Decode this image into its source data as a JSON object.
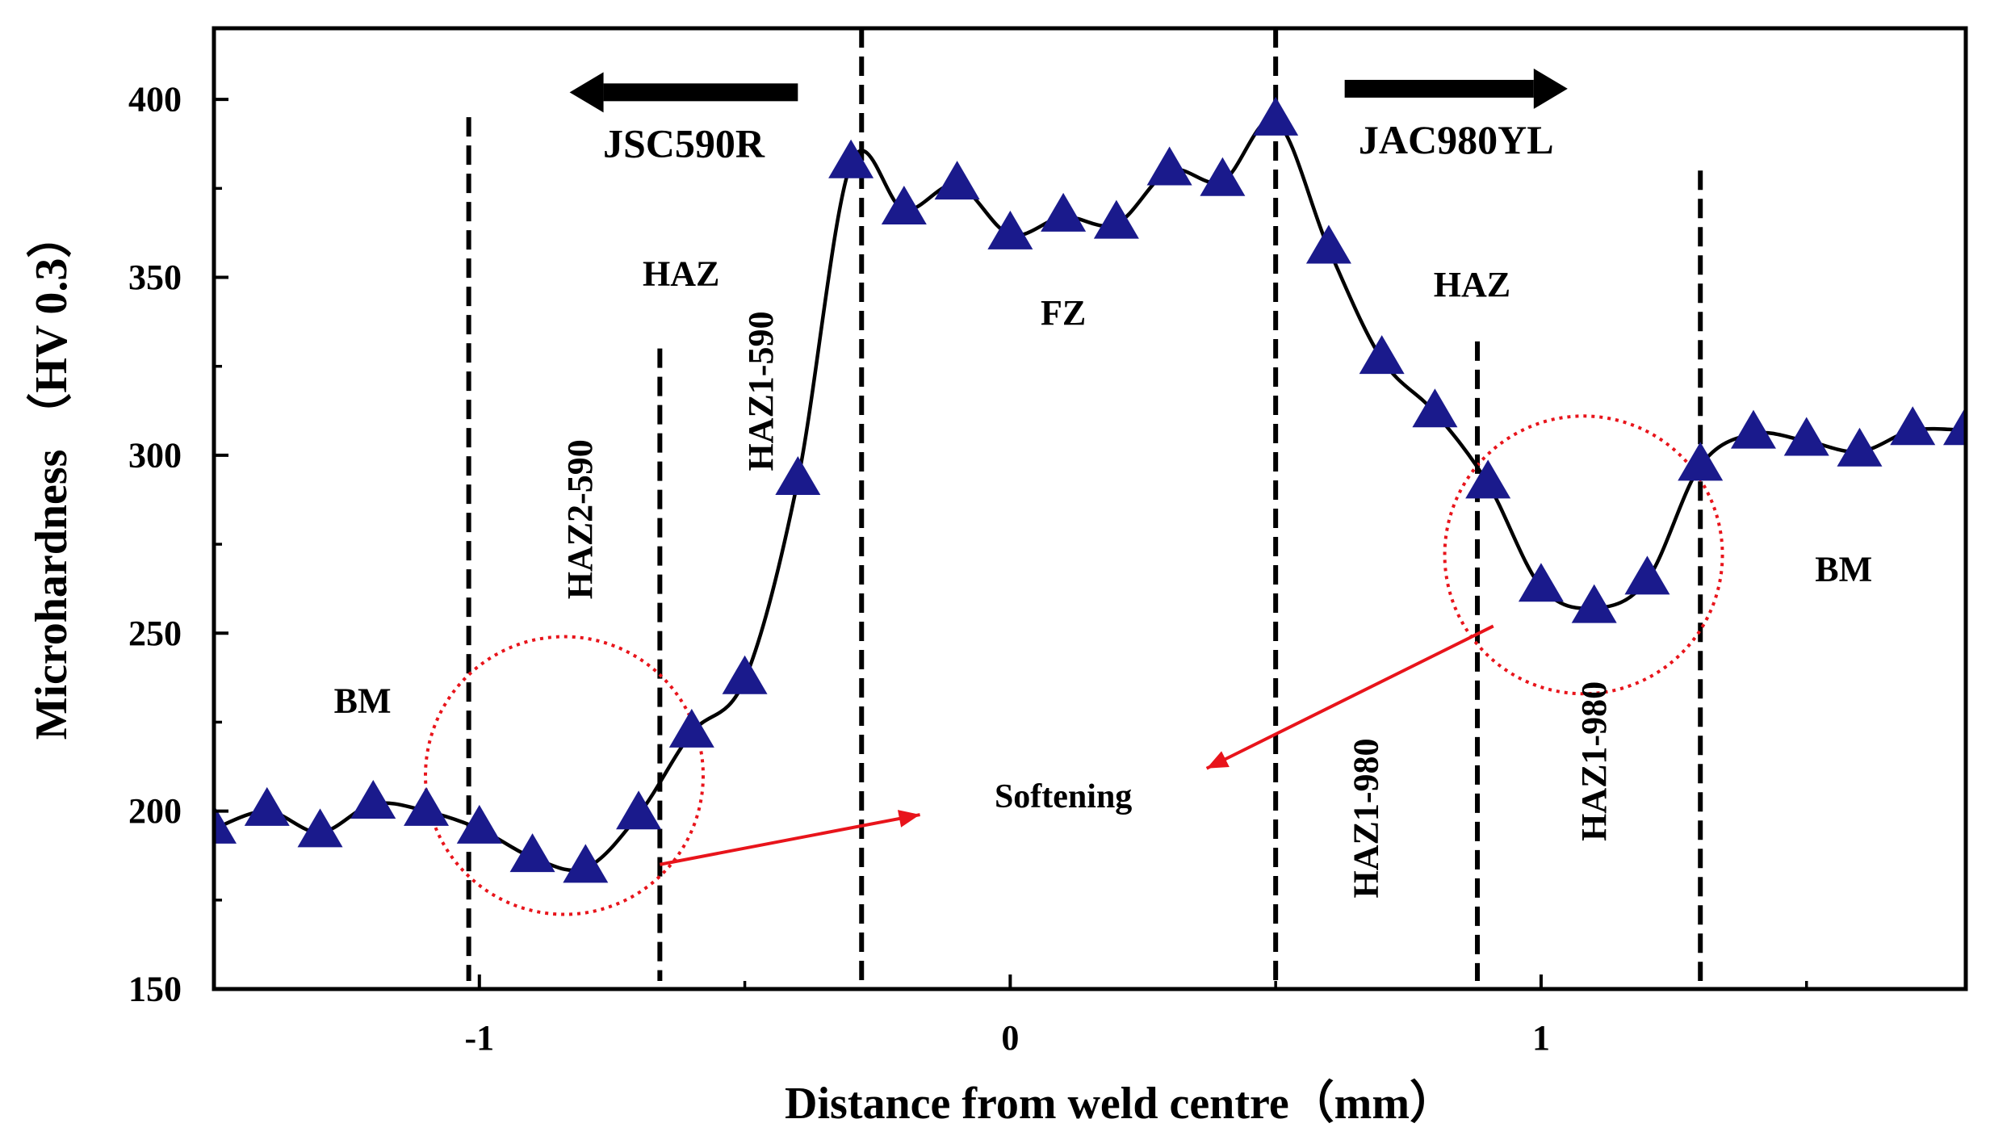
{
  "chart_data": {
    "type": "line",
    "title": "",
    "xlabel": "Distance from weld centre（mm）",
    "ylabel": "Microhardness （HV 0.3）",
    "xlim": [
      -1.5,
      1.8
    ],
    "ylim": [
      150,
      420
    ],
    "xticks": [
      -1,
      0,
      1
    ],
    "xtick_labels": [
      "-1",
      "0",
      "1"
    ],
    "yticks": [
      150,
      200,
      250,
      300,
      350,
      400
    ],
    "ytick_labels": [
      "150",
      "200",
      "250",
      "300",
      "350",
      "400"
    ],
    "marker": "triangle",
    "marker_color": "#1a1a8c",
    "line_color": "#000000",
    "series": [
      {
        "name": "Microhardness",
        "x": [
          -1.5,
          -1.4,
          -1.3,
          -1.2,
          -1.1,
          -1.0,
          -0.9,
          -0.8,
          -0.7,
          -0.6,
          -0.5,
          -0.4,
          -0.3,
          -0.2,
          -0.1,
          0.0,
          0.1,
          0.2,
          0.3,
          0.4,
          0.5,
          0.6,
          0.7,
          0.8,
          0.9,
          1.0,
          1.1,
          1.2,
          1.3,
          1.4,
          1.5,
          1.6,
          1.7,
          1.8
        ],
        "y": [
          195,
          200,
          194,
          202,
          200,
          195,
          187,
          184,
          199,
          222,
          237,
          293,
          382,
          369,
          376,
          362,
          367,
          365,
          380,
          377,
          394,
          358,
          327,
          312,
          292,
          263,
          257,
          265,
          297,
          306,
          304,
          301,
          307,
          307
        ]
      }
    ],
    "boundaries": [
      -1.02,
      -0.66,
      -0.28,
      0.5,
      0.88,
      1.3
    ],
    "softening_circles": [
      {
        "cx": -0.84,
        "cy": 210
      },
      {
        "cx": 1.08,
        "cy": 272
      }
    ],
    "arrows": [
      {
        "label": "JSC590R",
        "direction": "left",
        "from_x": -0.4,
        "to_x": -0.83,
        "y": 402
      },
      {
        "label": "JAC980YL",
        "direction": "right",
        "from_x": 0.63,
        "to_x": 1.05,
        "y": 403
      }
    ],
    "region_labels": [
      {
        "text": "HAZ",
        "x": -0.62,
        "y": 351,
        "rotated": false,
        "size": 44
      },
      {
        "text": "FZ",
        "x": 0.1,
        "y": 340,
        "rotated": false,
        "size": 44
      },
      {
        "text": "HAZ",
        "x": 0.87,
        "y": 348,
        "rotated": false,
        "size": 44
      },
      {
        "text": "BM",
        "x": -1.22,
        "y": 231,
        "rotated": false,
        "size": 44
      },
      {
        "text": "BM",
        "x": 1.57,
        "y": 268,
        "rotated": false,
        "size": 44
      },
      {
        "text": "Softening",
        "x": 0.1,
        "y": 204,
        "rotated": false,
        "size": 42
      },
      {
        "text": "HAZ2-590",
        "x": -0.81,
        "y": 282,
        "rotated": true,
        "size": 44
      },
      {
        "text": "HAZ1-590",
        "x": -0.47,
        "y": 318,
        "rotated": true,
        "size": 44
      },
      {
        "text": "HAZ1-980",
        "x": 0.67,
        "y": 198,
        "rotated": true,
        "size": 44
      },
      {
        "text": "HAZ1-980",
        "x": 1.1,
        "y": 214,
        "rotated": true,
        "size": 44
      }
    ],
    "softening_pointers": [
      {
        "from_x": -0.66,
        "from_y": 185,
        "to_x": -0.17,
        "to_y": 199
      },
      {
        "from_x": 0.91,
        "from_y": 252,
        "to_x": 0.37,
        "to_y": 212
      }
    ]
  }
}
